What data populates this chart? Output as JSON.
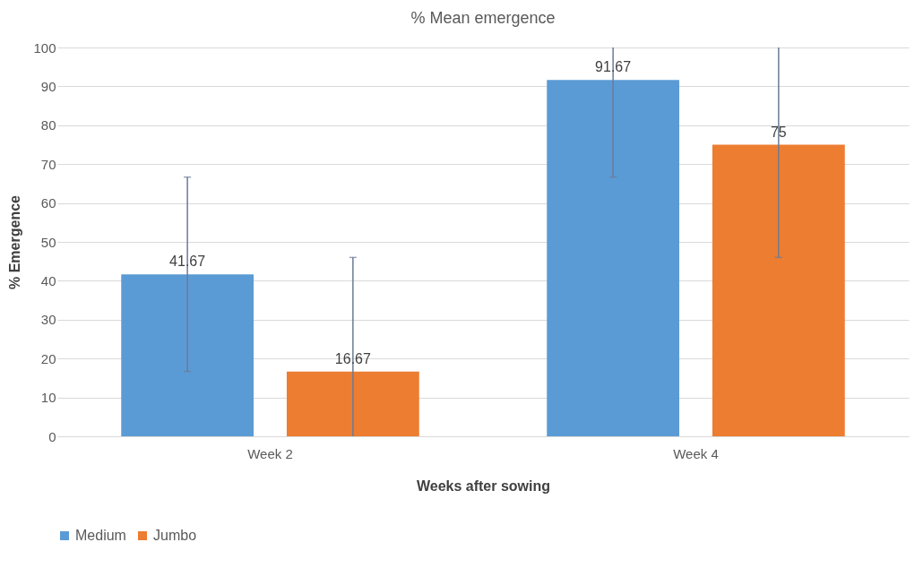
{
  "chart_data": {
    "type": "bar",
    "title": "% Mean emergence",
    "xlabel": "Weeks after sowing",
    "ylabel": "% Emergence",
    "categories": [
      "Week 2",
      "Week 4"
    ],
    "series": [
      {
        "name": "Medium",
        "color": "#5b9bd5",
        "values": [
          41.67,
          91.67
        ],
        "errors": [
          [
            16.67,
            66.67
          ],
          [
            66.67,
            100
          ]
        ]
      },
      {
        "name": "Jumbo",
        "color": "#ed7d31",
        "values": [
          16.67,
          75
        ],
        "errors": [
          [
            0,
            46
          ],
          [
            46,
            100
          ]
        ]
      }
    ],
    "ylim": [
      0,
      100
    ],
    "yticks": [
      0,
      10,
      20,
      30,
      40,
      50,
      60,
      70,
      80,
      90,
      100
    ],
    "grid": "y",
    "legend": "bottom",
    "data_labels": true
  }
}
